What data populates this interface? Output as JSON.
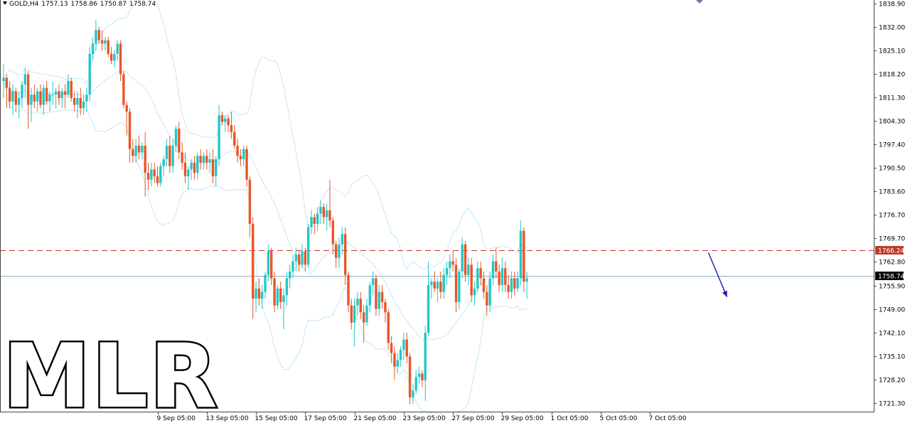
{
  "header": {
    "symbol": "GOLD,H4",
    "open": "1757.13",
    "high": "1758.86",
    "low": "1750.87",
    "close": "1758.74"
  },
  "watermark": "MLR",
  "colors": {
    "bull": "#26c6c6",
    "bear": "#e8562a",
    "bands": "#7ec8e8",
    "resistance": "#c0392b",
    "price_line": "#8fb3c6",
    "arrow": "#1a1aa8"
  },
  "chart_data": {
    "type": "candlestick",
    "symbol": "GOLD",
    "timeframe": "H4",
    "ylim": [
      1717.5,
      1840.5
    ],
    "y_ticks": [
      1838.9,
      1832.0,
      1825.1,
      1818.2,
      1811.3,
      1804.3,
      1797.4,
      1790.5,
      1783.6,
      1776.7,
      1769.7,
      1762.8,
      1755.9,
      1749.0,
      1742.1,
      1735.1,
      1728.2,
      1721.3
    ],
    "x_ticks": [
      {
        "label": "9 Sep 05:00",
        "bar": 50
      },
      {
        "label": "13 Sep 05:00",
        "bar": 66
      },
      {
        "label": "15 Sep 05:00",
        "bar": 82
      },
      {
        "label": "17 Sep 05:00",
        "bar": 98
      },
      {
        "label": "21 Sep 05:00",
        "bar": 114
      },
      {
        "label": "23 Sep 05:00",
        "bar": 130
      },
      {
        "label": "27 Sep 05:00",
        "bar": 146
      },
      {
        "label": "29 Sep 05:00",
        "bar": 162
      },
      {
        "label": "1 Oct 05:00",
        "bar": 178
      },
      {
        "label": "5 Oct 05:00",
        "bar": 194
      },
      {
        "label": "7 Oct 05:00",
        "bar": 210
      }
    ],
    "horizontal_lines": [
      {
        "value": 1766.24,
        "label": "1766.24",
        "style": "dashed"
      },
      {
        "value": 1758.74,
        "label": "1758.74",
        "style": "solid"
      }
    ],
    "annotation": {
      "type": "arrow",
      "direction": "down",
      "from_bar": 229,
      "from_value": 1765.5,
      "to_bar": 235,
      "to_value": 1752.5
    },
    "candles": [
      {
        "o": 1816,
        "h": 1821,
        "l": 1811,
        "c": 1817
      },
      {
        "o": 1817,
        "h": 1818,
        "l": 1808,
        "c": 1814
      },
      {
        "o": 1814,
        "h": 1816,
        "l": 1808,
        "c": 1810
      },
      {
        "o": 1810,
        "h": 1815,
        "l": 1806,
        "c": 1813
      },
      {
        "o": 1813,
        "h": 1814,
        "l": 1807,
        "c": 1809
      },
      {
        "o": 1809,
        "h": 1813,
        "l": 1805,
        "c": 1811
      },
      {
        "o": 1811,
        "h": 1816,
        "l": 1808,
        "c": 1815
      },
      {
        "o": 1815,
        "h": 1820,
        "l": 1811,
        "c": 1818
      },
      {
        "o": 1818,
        "h": 1819,
        "l": 1802,
        "c": 1809
      },
      {
        "o": 1809,
        "h": 1814,
        "l": 1804,
        "c": 1812
      },
      {
        "o": 1812,
        "h": 1815,
        "l": 1808,
        "c": 1810
      },
      {
        "o": 1810,
        "h": 1814,
        "l": 1807,
        "c": 1813
      },
      {
        "o": 1813,
        "h": 1815,
        "l": 1808,
        "c": 1809
      },
      {
        "o": 1809,
        "h": 1815,
        "l": 1806,
        "c": 1814
      },
      {
        "o": 1814,
        "h": 1816,
        "l": 1809,
        "c": 1810
      },
      {
        "o": 1810,
        "h": 1813,
        "l": 1807,
        "c": 1812
      },
      {
        "o": 1812,
        "h": 1816,
        "l": 1809,
        "c": 1812
      },
      {
        "o": 1812,
        "h": 1814,
        "l": 1808,
        "c": 1813
      },
      {
        "o": 1813,
        "h": 1815,
        "l": 1809,
        "c": 1811
      },
      {
        "o": 1811,
        "h": 1814,
        "l": 1808,
        "c": 1813
      },
      {
        "o": 1813,
        "h": 1815,
        "l": 1808,
        "c": 1812
      },
      {
        "o": 1812,
        "h": 1818,
        "l": 1811,
        "c": 1816
      },
      {
        "o": 1816,
        "h": 1817,
        "l": 1810,
        "c": 1811
      },
      {
        "o": 1811,
        "h": 1813,
        "l": 1807,
        "c": 1809
      },
      {
        "o": 1809,
        "h": 1813,
        "l": 1805,
        "c": 1811
      },
      {
        "o": 1811,
        "h": 1814,
        "l": 1806,
        "c": 1808
      },
      {
        "o": 1808,
        "h": 1812,
        "l": 1806,
        "c": 1810
      },
      {
        "o": 1810,
        "h": 1814,
        "l": 1807,
        "c": 1812
      },
      {
        "o": 1812,
        "h": 1826,
        "l": 1810,
        "c": 1824
      },
      {
        "o": 1824,
        "h": 1829,
        "l": 1822,
        "c": 1827
      },
      {
        "o": 1827,
        "h": 1834,
        "l": 1825,
        "c": 1831
      },
      {
        "o": 1831,
        "h": 1832,
        "l": 1827,
        "c": 1828
      },
      {
        "o": 1828,
        "h": 1831,
        "l": 1825,
        "c": 1827
      },
      {
        "o": 1827,
        "h": 1829,
        "l": 1825,
        "c": 1828
      },
      {
        "o": 1828,
        "h": 1829,
        "l": 1823,
        "c": 1824
      },
      {
        "o": 1824,
        "h": 1826,
        "l": 1821,
        "c": 1822
      },
      {
        "o": 1822,
        "h": 1825,
        "l": 1820,
        "c": 1824
      },
      {
        "o": 1824,
        "h": 1828,
        "l": 1822,
        "c": 1827
      },
      {
        "o": 1827,
        "h": 1828,
        "l": 1816,
        "c": 1818
      },
      {
        "o": 1818,
        "h": 1819,
        "l": 1808,
        "c": 1809
      },
      {
        "o": 1809,
        "h": 1810,
        "l": 1800,
        "c": 1807
      },
      {
        "o": 1807,
        "h": 1808,
        "l": 1792,
        "c": 1796
      },
      {
        "o": 1796,
        "h": 1799,
        "l": 1792,
        "c": 1794
      },
      {
        "o": 1794,
        "h": 1799,
        "l": 1792,
        "c": 1797
      },
      {
        "o": 1797,
        "h": 1800,
        "l": 1793,
        "c": 1795
      },
      {
        "o": 1795,
        "h": 1798,
        "l": 1793,
        "c": 1797
      },
      {
        "o": 1797,
        "h": 1801,
        "l": 1782,
        "c": 1789
      },
      {
        "o": 1789,
        "h": 1792,
        "l": 1784,
        "c": 1787
      },
      {
        "o": 1787,
        "h": 1792,
        "l": 1785,
        "c": 1790
      },
      {
        "o": 1790,
        "h": 1792,
        "l": 1786,
        "c": 1788
      },
      {
        "o": 1788,
        "h": 1791,
        "l": 1785,
        "c": 1786
      },
      {
        "o": 1786,
        "h": 1792,
        "l": 1785,
        "c": 1791
      },
      {
        "o": 1791,
        "h": 1794,
        "l": 1788,
        "c": 1793
      },
      {
        "o": 1793,
        "h": 1799,
        "l": 1791,
        "c": 1797
      },
      {
        "o": 1797,
        "h": 1800,
        "l": 1789,
        "c": 1791
      },
      {
        "o": 1791,
        "h": 1799,
        "l": 1789,
        "c": 1797
      },
      {
        "o": 1797,
        "h": 1803,
        "l": 1795,
        "c": 1802
      },
      {
        "o": 1802,
        "h": 1804,
        "l": 1793,
        "c": 1795
      },
      {
        "o": 1795,
        "h": 1798,
        "l": 1790,
        "c": 1792
      },
      {
        "o": 1792,
        "h": 1795,
        "l": 1786,
        "c": 1788
      },
      {
        "o": 1788,
        "h": 1791,
        "l": 1784,
        "c": 1790
      },
      {
        "o": 1790,
        "h": 1793,
        "l": 1787,
        "c": 1792
      },
      {
        "o": 1792,
        "h": 1794,
        "l": 1787,
        "c": 1789
      },
      {
        "o": 1789,
        "h": 1795,
        "l": 1787,
        "c": 1794
      },
      {
        "o": 1794,
        "h": 1796,
        "l": 1790,
        "c": 1792
      },
      {
        "o": 1792,
        "h": 1795,
        "l": 1790,
        "c": 1794
      },
      {
        "o": 1794,
        "h": 1796,
        "l": 1790,
        "c": 1792
      },
      {
        "o": 1792,
        "h": 1795,
        "l": 1789,
        "c": 1793
      },
      {
        "o": 1793,
        "h": 1796,
        "l": 1786,
        "c": 1788
      },
      {
        "o": 1788,
        "h": 1794,
        "l": 1785,
        "c": 1793
      },
      {
        "o": 1793,
        "h": 1809,
        "l": 1791,
        "c": 1806
      },
      {
        "o": 1806,
        "h": 1807,
        "l": 1803,
        "c": 1804
      },
      {
        "o": 1804,
        "h": 1806,
        "l": 1801,
        "c": 1805
      },
      {
        "o": 1805,
        "h": 1806,
        "l": 1801,
        "c": 1803
      },
      {
        "o": 1803,
        "h": 1807,
        "l": 1799,
        "c": 1801
      },
      {
        "o": 1801,
        "h": 1803,
        "l": 1796,
        "c": 1797
      },
      {
        "o": 1797,
        "h": 1799,
        "l": 1792,
        "c": 1794
      },
      {
        "o": 1794,
        "h": 1796,
        "l": 1791,
        "c": 1793
      },
      {
        "o": 1793,
        "h": 1797,
        "l": 1791,
        "c": 1796
      },
      {
        "o": 1796,
        "h": 1797,
        "l": 1785,
        "c": 1787
      },
      {
        "o": 1787,
        "h": 1788,
        "l": 1770,
        "c": 1774
      },
      {
        "o": 1774,
        "h": 1776,
        "l": 1746,
        "c": 1752
      },
      {
        "o": 1752,
        "h": 1757,
        "l": 1748,
        "c": 1755
      },
      {
        "o": 1755,
        "h": 1758,
        "l": 1750,
        "c": 1752
      },
      {
        "o": 1752,
        "h": 1756,
        "l": 1749,
        "c": 1754
      },
      {
        "o": 1754,
        "h": 1760,
        "l": 1752,
        "c": 1759
      },
      {
        "o": 1759,
        "h": 1768,
        "l": 1757,
        "c": 1766
      },
      {
        "o": 1766,
        "h": 1767,
        "l": 1756,
        "c": 1758
      },
      {
        "o": 1758,
        "h": 1760,
        "l": 1748,
        "c": 1750
      },
      {
        "o": 1750,
        "h": 1756,
        "l": 1749,
        "c": 1755
      },
      {
        "o": 1755,
        "h": 1757,
        "l": 1749,
        "c": 1751
      },
      {
        "o": 1751,
        "h": 1755,
        "l": 1743,
        "c": 1753
      },
      {
        "o": 1753,
        "h": 1760,
        "l": 1750,
        "c": 1758
      },
      {
        "o": 1758,
        "h": 1762,
        "l": 1755,
        "c": 1760
      },
      {
        "o": 1760,
        "h": 1765,
        "l": 1758,
        "c": 1763
      },
      {
        "o": 1763,
        "h": 1767,
        "l": 1760,
        "c": 1765
      },
      {
        "o": 1765,
        "h": 1766,
        "l": 1760,
        "c": 1762
      },
      {
        "o": 1762,
        "h": 1768,
        "l": 1761,
        "c": 1766
      },
      {
        "o": 1766,
        "h": 1767,
        "l": 1760,
        "c": 1762
      },
      {
        "o": 1762,
        "h": 1774,
        "l": 1761,
        "c": 1773
      },
      {
        "o": 1773,
        "h": 1778,
        "l": 1771,
        "c": 1776
      },
      {
        "o": 1776,
        "h": 1777,
        "l": 1771,
        "c": 1774
      },
      {
        "o": 1774,
        "h": 1779,
        "l": 1772,
        "c": 1777
      },
      {
        "o": 1777,
        "h": 1781,
        "l": 1774,
        "c": 1779
      },
      {
        "o": 1779,
        "h": 1780,
        "l": 1774,
        "c": 1776
      },
      {
        "o": 1776,
        "h": 1780,
        "l": 1772,
        "c": 1778
      },
      {
        "o": 1778,
        "h": 1787,
        "l": 1773,
        "c": 1775
      },
      {
        "o": 1775,
        "h": 1776,
        "l": 1765,
        "c": 1768
      },
      {
        "o": 1768,
        "h": 1769,
        "l": 1761,
        "c": 1764
      },
      {
        "o": 1764,
        "h": 1770,
        "l": 1761,
        "c": 1768
      },
      {
        "o": 1768,
        "h": 1773,
        "l": 1765,
        "c": 1771
      },
      {
        "o": 1771,
        "h": 1773,
        "l": 1756,
        "c": 1759
      },
      {
        "o": 1759,
        "h": 1760,
        "l": 1748,
        "c": 1750
      },
      {
        "o": 1750,
        "h": 1752,
        "l": 1743,
        "c": 1745
      },
      {
        "o": 1745,
        "h": 1752,
        "l": 1738,
        "c": 1750
      },
      {
        "o": 1750,
        "h": 1754,
        "l": 1747,
        "c": 1752
      },
      {
        "o": 1752,
        "h": 1754,
        "l": 1746,
        "c": 1748
      },
      {
        "o": 1748,
        "h": 1750,
        "l": 1739,
        "c": 1745
      },
      {
        "o": 1745,
        "h": 1752,
        "l": 1744,
        "c": 1750
      },
      {
        "o": 1750,
        "h": 1757,
        "l": 1748,
        "c": 1756
      },
      {
        "o": 1756,
        "h": 1760,
        "l": 1753,
        "c": 1758
      },
      {
        "o": 1758,
        "h": 1759,
        "l": 1747,
        "c": 1749
      },
      {
        "o": 1749,
        "h": 1756,
        "l": 1747,
        "c": 1754
      },
      {
        "o": 1754,
        "h": 1756,
        "l": 1749,
        "c": 1751
      },
      {
        "o": 1751,
        "h": 1752,
        "l": 1745,
        "c": 1748
      },
      {
        "o": 1748,
        "h": 1749,
        "l": 1737,
        "c": 1739
      },
      {
        "o": 1739,
        "h": 1741,
        "l": 1733,
        "c": 1736
      },
      {
        "o": 1736,
        "h": 1738,
        "l": 1728,
        "c": 1732
      },
      {
        "o": 1732,
        "h": 1736,
        "l": 1730,
        "c": 1734
      },
      {
        "o": 1734,
        "h": 1738,
        "l": 1732,
        "c": 1737
      },
      {
        "o": 1737,
        "h": 1742,
        "l": 1734,
        "c": 1740
      },
      {
        "o": 1740,
        "h": 1742,
        "l": 1733,
        "c": 1735
      },
      {
        "o": 1735,
        "h": 1736,
        "l": 1721,
        "c": 1723
      },
      {
        "o": 1723,
        "h": 1727,
        "l": 1721,
        "c": 1725
      },
      {
        "o": 1725,
        "h": 1731,
        "l": 1724,
        "c": 1729
      },
      {
        "o": 1729,
        "h": 1732,
        "l": 1727,
        "c": 1730
      },
      {
        "o": 1730,
        "h": 1731,
        "l": 1726,
        "c": 1728
      },
      {
        "o": 1728,
        "h": 1744,
        "l": 1722,
        "c": 1742
      },
      {
        "o": 1742,
        "h": 1763,
        "l": 1741,
        "c": 1756
      },
      {
        "o": 1756,
        "h": 1758,
        "l": 1752,
        "c": 1757
      },
      {
        "o": 1757,
        "h": 1760,
        "l": 1754,
        "c": 1755
      },
      {
        "o": 1755,
        "h": 1758,
        "l": 1751,
        "c": 1757
      },
      {
        "o": 1757,
        "h": 1760,
        "l": 1752,
        "c": 1754
      },
      {
        "o": 1754,
        "h": 1761,
        "l": 1752,
        "c": 1759
      },
      {
        "o": 1759,
        "h": 1763,
        "l": 1756,
        "c": 1761
      },
      {
        "o": 1761,
        "h": 1765,
        "l": 1758,
        "c": 1763
      },
      {
        "o": 1763,
        "h": 1766,
        "l": 1760,
        "c": 1762
      },
      {
        "o": 1762,
        "h": 1764,
        "l": 1748,
        "c": 1751
      },
      {
        "o": 1751,
        "h": 1761,
        "l": 1749,
        "c": 1760
      },
      {
        "o": 1760,
        "h": 1770,
        "l": 1758,
        "c": 1768
      },
      {
        "o": 1768,
        "h": 1769,
        "l": 1757,
        "c": 1759
      },
      {
        "o": 1759,
        "h": 1764,
        "l": 1756,
        "c": 1762
      },
      {
        "o": 1762,
        "h": 1764,
        "l": 1751,
        "c": 1753
      },
      {
        "o": 1753,
        "h": 1757,
        "l": 1750,
        "c": 1755
      },
      {
        "o": 1755,
        "h": 1763,
        "l": 1754,
        "c": 1761
      },
      {
        "o": 1761,
        "h": 1763,
        "l": 1756,
        "c": 1758
      },
      {
        "o": 1758,
        "h": 1760,
        "l": 1752,
        "c": 1754
      },
      {
        "o": 1754,
        "h": 1756,
        "l": 1747,
        "c": 1750
      },
      {
        "o": 1750,
        "h": 1760,
        "l": 1748,
        "c": 1758
      },
      {
        "o": 1758,
        "h": 1765,
        "l": 1756,
        "c": 1763
      },
      {
        "o": 1763,
        "h": 1767,
        "l": 1758,
        "c": 1760
      },
      {
        "o": 1760,
        "h": 1762,
        "l": 1754,
        "c": 1756
      },
      {
        "o": 1756,
        "h": 1764,
        "l": 1754,
        "c": 1761
      },
      {
        "o": 1761,
        "h": 1763,
        "l": 1754,
        "c": 1756
      },
      {
        "o": 1756,
        "h": 1759,
        "l": 1752,
        "c": 1754
      },
      {
        "o": 1754,
        "h": 1760,
        "l": 1752,
        "c": 1758
      },
      {
        "o": 1758,
        "h": 1760,
        "l": 1753,
        "c": 1755
      },
      {
        "o": 1755,
        "h": 1760,
        "l": 1754,
        "c": 1758
      },
      {
        "o": 1758,
        "h": 1775,
        "l": 1756,
        "c": 1772
      },
      {
        "o": 1772,
        "h": 1773,
        "l": 1754,
        "c": 1757
      },
      {
        "o": 1757,
        "h": 1760,
        "l": 1752,
        "c": 1758
      }
    ]
  }
}
